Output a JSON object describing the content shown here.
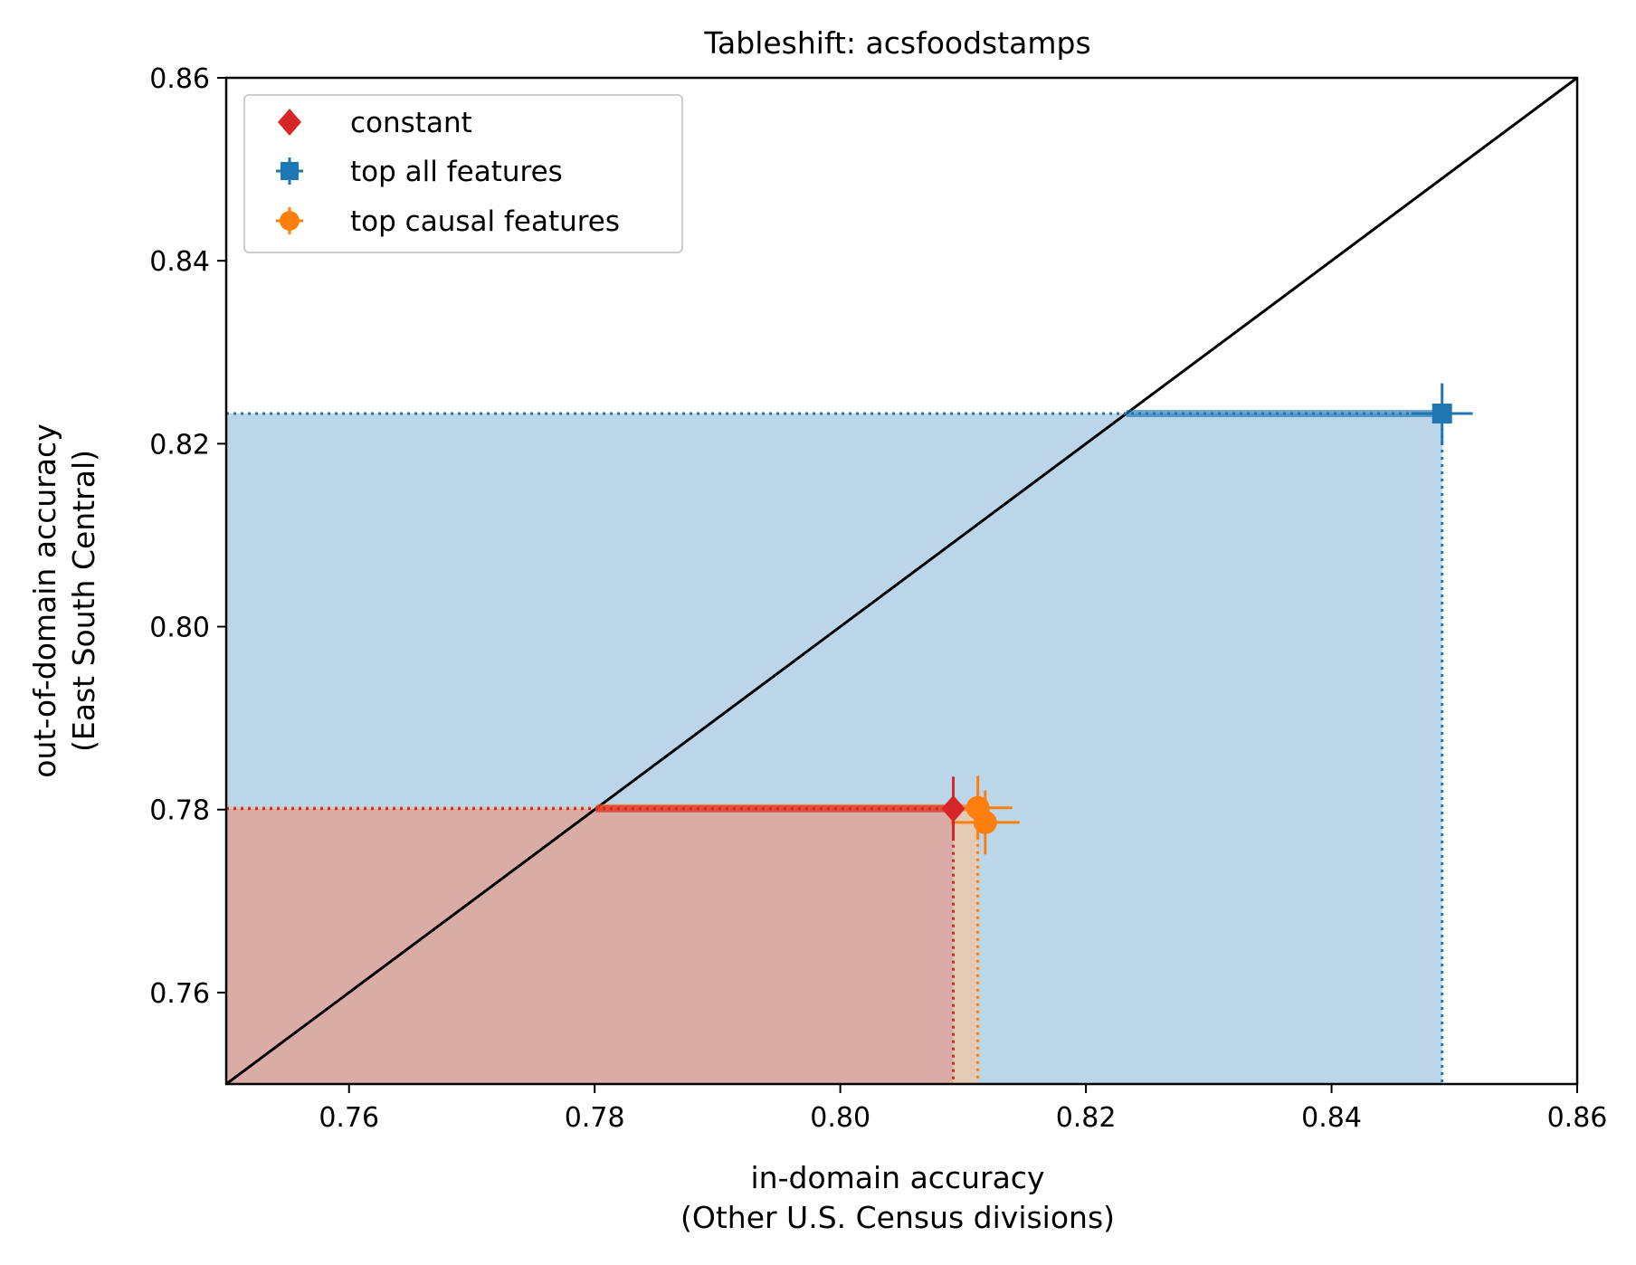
{
  "chart_data": {
    "type": "scatter",
    "title": "Tableshift: acsfoodstamps",
    "xlabel": [
      "in-domain accuracy",
      "(Other U.S. Census divisions)"
    ],
    "ylabel": [
      "out-of-domain accuracy",
      "(East South Central)"
    ],
    "xlim": [
      0.75,
      0.86
    ],
    "ylim": [
      0.75,
      0.86
    ],
    "xticks": [
      0.76,
      0.78,
      0.8,
      0.82,
      0.84,
      0.86
    ],
    "yticks": [
      0.76,
      0.78,
      0.8,
      0.82,
      0.84,
      0.86
    ],
    "xtick_labels": [
      "0.76",
      "0.78",
      "0.80",
      "0.82",
      "0.84",
      "0.86"
    ],
    "ytick_labels": [
      "0.76",
      "0.78",
      "0.80",
      "0.82",
      "0.84",
      "0.86"
    ],
    "diagonal": true,
    "grid": false,
    "legend_position": "top-left",
    "series": [
      {
        "name": "top all features",
        "marker": "square",
        "color": "#1f77b4",
        "shade_color": "#a6c8e2",
        "points": [
          {
            "x": 0.849,
            "y": 0.8233,
            "xerr": 0.0025,
            "yerr": 0.0033
          }
        ]
      },
      {
        "name": "top causal features",
        "marker": "circle",
        "color": "#ff7f0e",
        "shade_color": "#f0c7a4",
        "points": [
          {
            "x": 0.8112,
            "y": 0.7802,
            "xerr": 0.0028,
            "yerr": 0.0035
          },
          {
            "x": 0.8118,
            "y": 0.7786,
            "xerr": 0.0028,
            "yerr": 0.0035
          }
        ]
      },
      {
        "name": "constant",
        "marker": "diamond",
        "color": "#d62728",
        "shade_color": "#d6a3a0",
        "points": [
          {
            "x": 0.8092,
            "y": 0.7801,
            "xerr": 0.0,
            "yerr": 0.0035
          }
        ]
      }
    ],
    "legend": [
      "constant",
      "top all features",
      "top causal features"
    ]
  }
}
